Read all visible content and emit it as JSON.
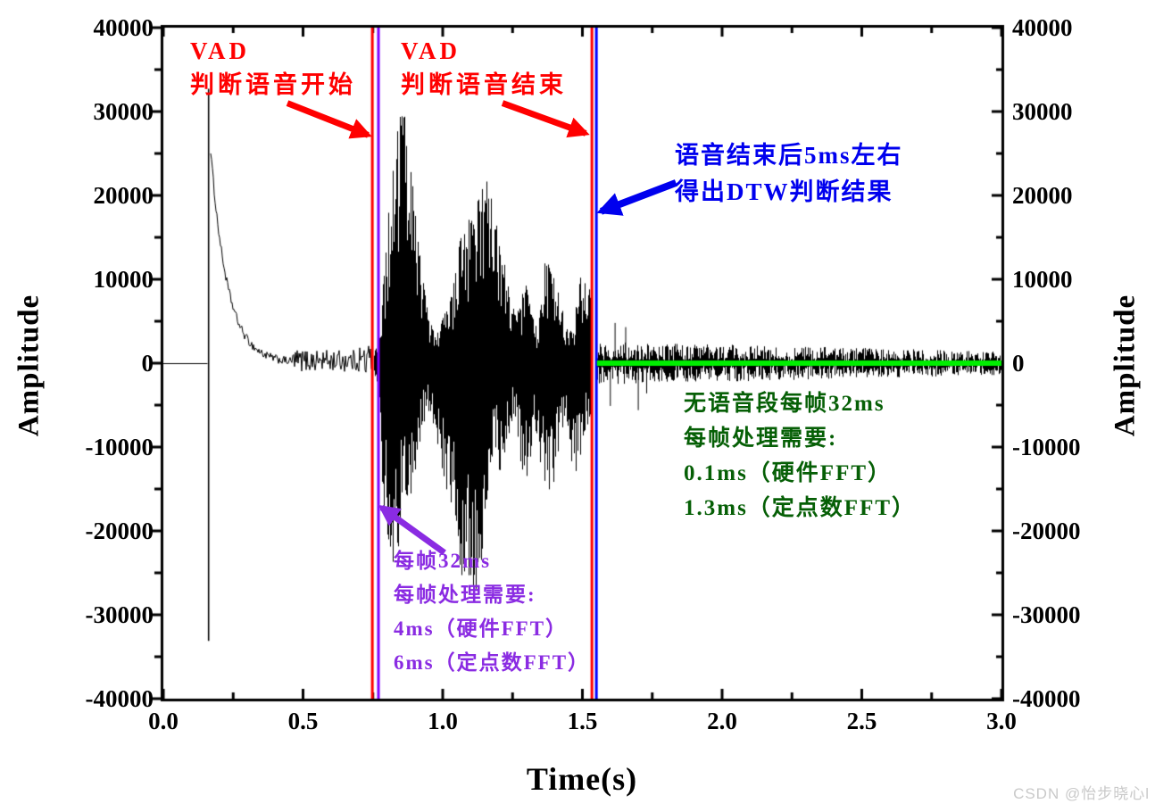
{
  "chart_data": {
    "type": "line",
    "title": "",
    "xlabel": "Time(s)",
    "ylabel_left": "Amplitude",
    "ylabel_right": "Amplitude",
    "xlim": [
      0,
      3.0
    ],
    "ylim": [
      -40000,
      40000
    ],
    "x_ticks": {
      "major": [
        0,
        0.5,
        1.0,
        1.5,
        2.0,
        2.5,
        3.0
      ],
      "labels": [
        "0.0",
        "0.5",
        "1.0",
        "1.5",
        "2.0",
        "2.5",
        "3.0"
      ],
      "minor": [
        0.25,
        0.75,
        1.25,
        1.75,
        2.25,
        2.75
      ]
    },
    "y_ticks": {
      "major": [
        40000,
        30000,
        20000,
        10000,
        0,
        -10000,
        -20000,
        -30000,
        -40000
      ],
      "labels": [
        "40000",
        "30000",
        "20000",
        "10000",
        "0",
        "-10000",
        "-20000",
        "-30000",
        "-40000"
      ],
      "minor": [
        35000,
        25000,
        15000,
        5000,
        -5000,
        -15000,
        -25000,
        -35000
      ]
    },
    "waveform": {
      "color": "#000000",
      "flat": {
        "t0": 0.0,
        "t1": 0.158,
        "value": 0
      },
      "spike": {
        "t": 0.162,
        "top": 32700,
        "bottom": -33100
      },
      "decay": {
        "t0": 0.168,
        "t1": 0.46,
        "amp0": 26000,
        "tau": 0.06,
        "noise": 500
      },
      "noise_pre": {
        "t0": 0.46,
        "t1": 0.748,
        "base": 300,
        "amp": 1300,
        "late_t": 0.7,
        "late_extra": 900
      },
      "speech": {
        "t0": 0.755,
        "t1": 1.534,
        "env_pos": [
          [
            0.755,
            1500
          ],
          [
            0.772,
            2500
          ],
          [
            0.79,
            12000
          ],
          [
            0.81,
            20000
          ],
          [
            0.83,
            26000
          ],
          [
            0.855,
            32000
          ],
          [
            0.875,
            26000
          ],
          [
            0.9,
            19000
          ],
          [
            0.925,
            11000
          ],
          [
            0.95,
            5000
          ],
          [
            0.98,
            3600
          ],
          [
            1.005,
            6300
          ],
          [
            1.03,
            8000
          ],
          [
            1.06,
            14800
          ],
          [
            1.085,
            17300
          ],
          [
            1.105,
            18000
          ],
          [
            1.13,
            19800
          ],
          [
            1.152,
            24000
          ],
          [
            1.175,
            20800
          ],
          [
            1.2,
            14800
          ],
          [
            1.22,
            12000
          ],
          [
            1.245,
            7000
          ],
          [
            1.27,
            6300
          ],
          [
            1.295,
            10200
          ],
          [
            1.32,
            5600
          ],
          [
            1.34,
            3900
          ],
          [
            1.365,
            13400
          ],
          [
            1.39,
            12000
          ],
          [
            1.415,
            8100
          ],
          [
            1.44,
            4600
          ],
          [
            1.465,
            3900
          ],
          [
            1.49,
            11300
          ],
          [
            1.51,
            9900
          ],
          [
            1.53,
            8400
          ],
          [
            1.534,
            5000
          ]
        ],
        "env_neg": [
          [
            0.755,
            1500
          ],
          [
            0.772,
            3000
          ],
          [
            0.785,
            17000
          ],
          [
            0.807,
            23700
          ],
          [
            0.824,
            23700
          ],
          [
            0.84,
            22100
          ],
          [
            0.855,
            15000
          ],
          [
            0.87,
            17400
          ],
          [
            0.894,
            14700
          ],
          [
            0.92,
            8900
          ],
          [
            0.945,
            5700
          ],
          [
            0.967,
            7800
          ],
          [
            0.99,
            11000
          ],
          [
            1.015,
            16800
          ],
          [
            1.04,
            18400
          ],
          [
            1.063,
            26900
          ],
          [
            1.088,
            24800
          ],
          [
            1.11,
            28200
          ],
          [
            1.136,
            24800
          ],
          [
            1.158,
            16300
          ],
          [
            1.18,
            9900
          ],
          [
            1.207,
            13600
          ],
          [
            1.232,
            9400
          ],
          [
            1.254,
            6200
          ],
          [
            1.28,
            12600
          ],
          [
            1.302,
            14200
          ],
          [
            1.328,
            7300
          ],
          [
            1.35,
            13600
          ],
          [
            1.375,
            16300
          ],
          [
            1.398,
            14200
          ],
          [
            1.423,
            7800
          ],
          [
            1.445,
            7300
          ],
          [
            1.468,
            14700
          ],
          [
            1.49,
            11500
          ],
          [
            1.513,
            7800
          ],
          [
            1.53,
            6200
          ],
          [
            1.534,
            4000
          ]
        ]
      },
      "noise_post": {
        "t0": 1.552,
        "t1": 3.0,
        "amp0": 2600,
        "amp1": 1400,
        "spikes": [
          [
            1.6,
            -5100
          ],
          [
            1.617,
            4800
          ],
          [
            1.655,
            4300
          ],
          [
            1.7,
            -5600
          ],
          [
            1.73,
            -3600
          ]
        ]
      }
    },
    "vlines": [
      {
        "t": 0.748,
        "color": "#ff0000",
        "name": "vad-start-red"
      },
      {
        "t": 0.77,
        "color": "#8000ff",
        "name": "vad-start-purple"
      },
      {
        "t": 1.534,
        "color": "#ff0000",
        "name": "vad-end-red"
      },
      {
        "t": 1.55,
        "color": "#0000ff",
        "name": "dtw-result-blue"
      }
    ],
    "green_line": {
      "t0": 1.552,
      "t1": 3.0,
      "amplitude": 0,
      "color": "#00ee00",
      "thickness": 6
    }
  },
  "annotations": {
    "vad_start": {
      "color": "#ff0000",
      "lines": [
        "VAD",
        "判断语音开始"
      ],
      "arrow": {
        "from_t": 0.444,
        "from_a": 31000,
        "to_t": 0.733,
        "to_a": 27200,
        "width": 7
      }
    },
    "vad_end": {
      "color": "#ff0000",
      "lines": [
        "VAD",
        "判断语音结束"
      ],
      "arrow": {
        "from_t": 1.214,
        "from_a": 31000,
        "to_t": 1.512,
        "to_a": 27400,
        "width": 7
      }
    },
    "dtw_result": {
      "color": "#0000ee",
      "lines": [
        "语音结束后5ms左右",
        "得出DTW判断结果"
      ],
      "arrow": {
        "from_t": 1.835,
        "from_a": 21500,
        "to_t": 1.567,
        "to_a": 18100,
        "width": 8
      }
    },
    "silence_frames": {
      "color": "#065f06",
      "lines": [
        "无语音段每帧32ms",
        "每帧处理需要:",
        "0.1ms（硬件FFT）",
        "1.3ms（定点数FFT）"
      ]
    },
    "speech_frames": {
      "color": "#8a2be2",
      "lines": [
        "每帧32ms",
        "每帧处理需要:",
        "4ms（硬件FFT）",
        "6ms（定点数FFT）"
      ],
      "arrow": {
        "from_t": 1.006,
        "from_a": -22600,
        "to_t": 0.781,
        "to_a": -17200,
        "width": 7
      }
    }
  },
  "watermark": {
    "text": "CSDN @怡步晓心l",
    "color": "#c9c9c9"
  }
}
